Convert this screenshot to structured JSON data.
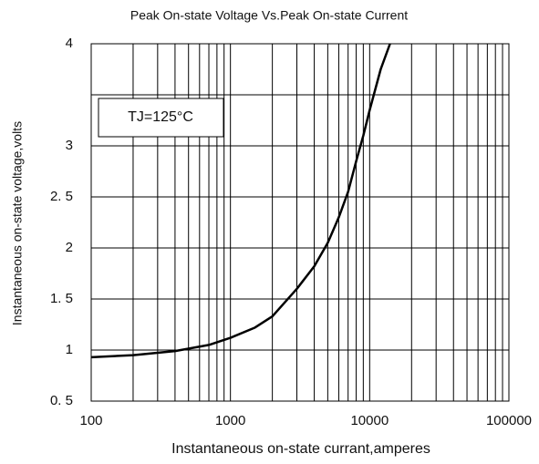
{
  "chart_data": {
    "type": "line",
    "title": "Peak On-state Voltage Vs.Peak On-state Current",
    "x_label": "Instantaneous on-state currant,amperes",
    "y_label": "Instantaneous on-state voltage,volts",
    "annotation": "TJ=125°C",
    "x_log": true,
    "xlim": [
      100,
      100000
    ],
    "xticks": [
      100,
      1000,
      10000,
      100000
    ],
    "ylim": [
      0.5,
      4
    ],
    "yticks": [
      {
        "value": 0.5,
        "label": "0. 5"
      },
      1,
      {
        "value": 1.5,
        "label": "1. 5"
      },
      2,
      {
        "value": 2.5,
        "label": "2. 5"
      },
      3,
      {
        "value": 3.5,
        "label": null
      },
      4
    ],
    "grid": true,
    "series": [
      {
        "name": null,
        "color": "#000000",
        "x": [
          100,
          200,
          400,
          700,
          1000,
          1500,
          2000,
          3000,
          4000,
          5000,
          6000,
          7000,
          8000,
          9000,
          10000,
          12000,
          14000
        ],
        "values": [
          0.93,
          0.95,
          0.99,
          1.05,
          1.12,
          1.22,
          1.33,
          1.6,
          1.82,
          2.05,
          2.3,
          2.55,
          2.85,
          3.1,
          3.35,
          3.75,
          4
        ]
      }
    ]
  }
}
